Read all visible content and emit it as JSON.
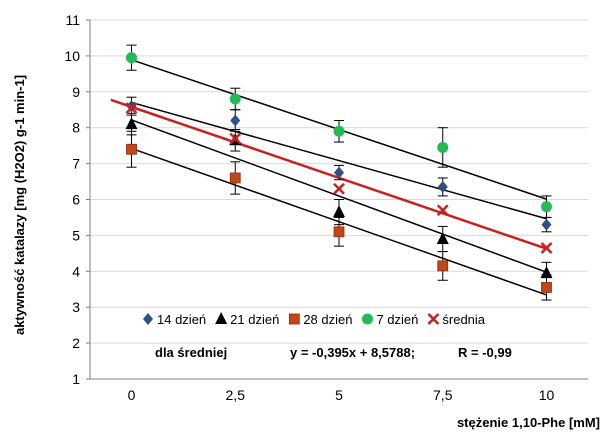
{
  "chart_data": {
    "type": "scatter",
    "title": "",
    "xlabel": "stężenie 1,10-Phe [mM]",
    "ylabel": "aktywność katalazy [mg (H2O2) g-1 min-1]",
    "xlim": [
      -1,
      11
    ],
    "ylim": [
      1,
      11
    ],
    "x_ticks": [
      "0",
      "2,5",
      "5",
      "7,5",
      "10"
    ],
    "y_ticks": [
      "1",
      "2",
      "3",
      "4",
      "5",
      "6",
      "7",
      "8",
      "9",
      "10",
      "11"
    ],
    "grid": "horizontal",
    "legend_position": "bottom-inside",
    "x": [
      0,
      2.5,
      5,
      7.5,
      10
    ],
    "series": [
      {
        "name": "14 dzień",
        "marker": "diamond",
        "color": "#2f4f86",
        "values": [
          8.6,
          8.2,
          6.75,
          6.35,
          5.3
        ],
        "errors": [
          0.25,
          0.3,
          0.2,
          0.25,
          0.2
        ],
        "trendline": {
          "slope": -0.324,
          "intercept": 8.704
        }
      },
      {
        "name": "21 dzień",
        "marker": "triangle",
        "color": "#000000",
        "values": [
          8.1,
          7.65,
          5.65,
          4.9,
          3.95
        ],
        "errors": [
          0.3,
          0.3,
          0.35,
          0.35,
          0.3
        ],
        "trendline": {
          "slope": -0.424,
          "intercept": 8.216
        }
      },
      {
        "name": "28 dzień",
        "marker": "square",
        "color": "#c0471a",
        "values": [
          7.4,
          6.6,
          5.1,
          4.15,
          3.55
        ],
        "errors": [
          0.5,
          0.45,
          0.4,
          0.4,
          0.35
        ],
        "trendline": {
          "slope": -0.408,
          "intercept": 7.422
        }
      },
      {
        "name": "7 dzień",
        "marker": "circle",
        "color": "#22bb55",
        "values": [
          9.95,
          8.8,
          7.9,
          7.45,
          5.8
        ],
        "errors": [
          0.35,
          0.3,
          0.3,
          0.55,
          0.3
        ],
        "trendline": {
          "slope": -0.388,
          "intercept": 9.89
        }
      },
      {
        "name": "średnia",
        "marker": "x",
        "color": "#cc1f1f",
        "values": [
          8.55,
          7.7,
          6.3,
          5.7,
          4.65
        ],
        "errors": null,
        "trendline": {
          "slope": -0.395,
          "intercept": 8.5788,
          "x_start": -0.5
        }
      }
    ],
    "annotation": {
      "prefix": "dla średniej",
      "equation": "y = -0,395x + 8,5788;",
      "r": "R = -0,99"
    }
  }
}
